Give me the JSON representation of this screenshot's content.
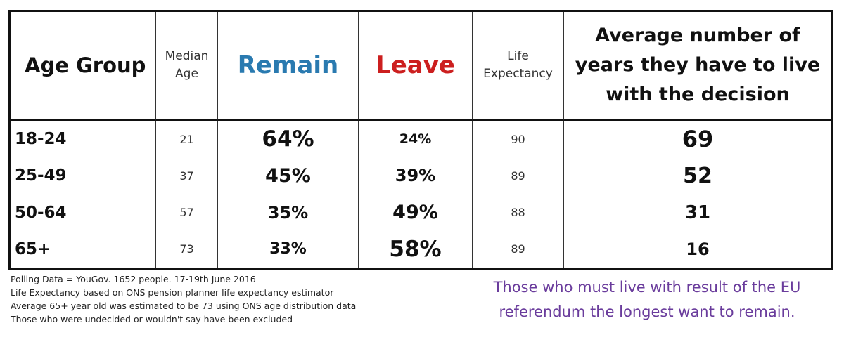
{
  "colors": {
    "remain": "#2a7ab0",
    "leave": "#cc1f1f",
    "caption": "#6a3c9c"
  },
  "header": {
    "age_group": "Age Group",
    "median_age": [
      "Median",
      "Age"
    ],
    "remain": "Remain",
    "leave": "Leave",
    "life_expectancy": [
      "Life",
      "Expectancy"
    ],
    "avg_years": [
      "Average number of",
      "years they have to live",
      "with the decision"
    ]
  },
  "rows": [
    {
      "age_group": "18-24",
      "median_age": "21",
      "remain": "64%",
      "leave": "24%",
      "life_expectancy": "90",
      "avg_years": "69"
    },
    {
      "age_group": "25-49",
      "median_age": "37",
      "remain": "45%",
      "leave": "39%",
      "life_expectancy": "89",
      "avg_years": "52"
    },
    {
      "age_group": "50-64",
      "median_age": "57",
      "remain": "35%",
      "leave": "49%",
      "life_expectancy": "88",
      "avg_years": "31"
    },
    {
      "age_group": "65+",
      "median_age": "73",
      "remain": "33%",
      "leave": "58%",
      "life_expectancy": "89",
      "avg_years": "16"
    }
  ],
  "notes": [
    "Polling Data = YouGov. 1652 people. 17-19th June 2016",
    "Life Expectancy based on ONS pension planner life expectancy estimator",
    "Average 65+ year old was estimated to be 73 using ONS age distribution data",
    "Those who were undecided or wouldn't say have been excluded"
  ],
  "caption": [
    "Those who must live with result of the EU",
    "referendum the longest want to remain."
  ]
}
